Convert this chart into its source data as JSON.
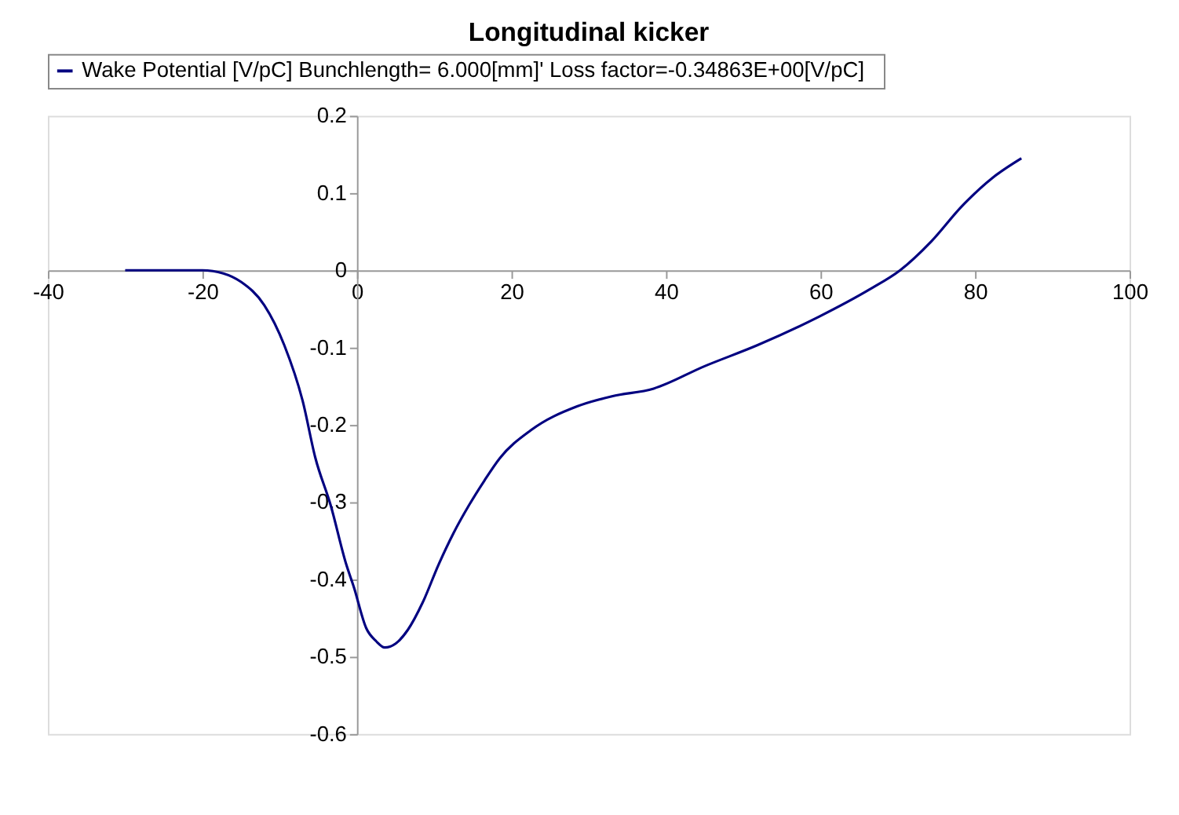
{
  "chart_data": {
    "type": "line",
    "title": "Longitudinal kicker",
    "series": [
      {
        "name": "Wake Potential [V/pC] Bunchlength=   6.000[mm]' Loss factor=-0.34863E+00[V/pC]",
        "color": "#000080",
        "x": [
          -30,
          -20,
          -17.3,
          -15,
          -12,
          -9.4,
          -7,
          -5.4,
          -3.4,
          -1.4,
          -0.4,
          1.2,
          2.5,
          3.6,
          5,
          6.6,
          8.5,
          10.6,
          12.5,
          14.5,
          16.5,
          18.5,
          22.5,
          28.5,
          33,
          38.4,
          45,
          51.8,
          59.8,
          66.3,
          70.3,
          74.3,
          78.3,
          82.3,
          86
        ],
        "values": [
          0,
          0,
          -0.004,
          -0.015,
          -0.045,
          -0.097,
          -0.17,
          -0.242,
          -0.304,
          -0.38,
          -0.41,
          -0.463,
          -0.48,
          -0.488,
          -0.483,
          -0.465,
          -0.43,
          -0.38,
          -0.34,
          -0.304,
          -0.272,
          -0.243,
          -0.207,
          -0.176,
          -0.163,
          -0.153,
          -0.124,
          -0.097,
          -0.06,
          -0.025,
          0,
          0.037,
          0.083,
          0.12,
          0.145
        ]
      }
    ],
    "xlim": [
      -40,
      100
    ],
    "xticks": [
      -40,
      -20,
      0,
      20,
      40,
      60,
      80,
      100
    ],
    "ylim": [
      -0.6,
      0.2
    ],
    "yticks": [
      -0.6,
      -0.5,
      -0.4,
      -0.3,
      -0.2,
      -0.1,
      0,
      0.1,
      0.2
    ],
    "grid": false,
    "legend": "top",
    "line_style": "solid",
    "marker": "none"
  }
}
